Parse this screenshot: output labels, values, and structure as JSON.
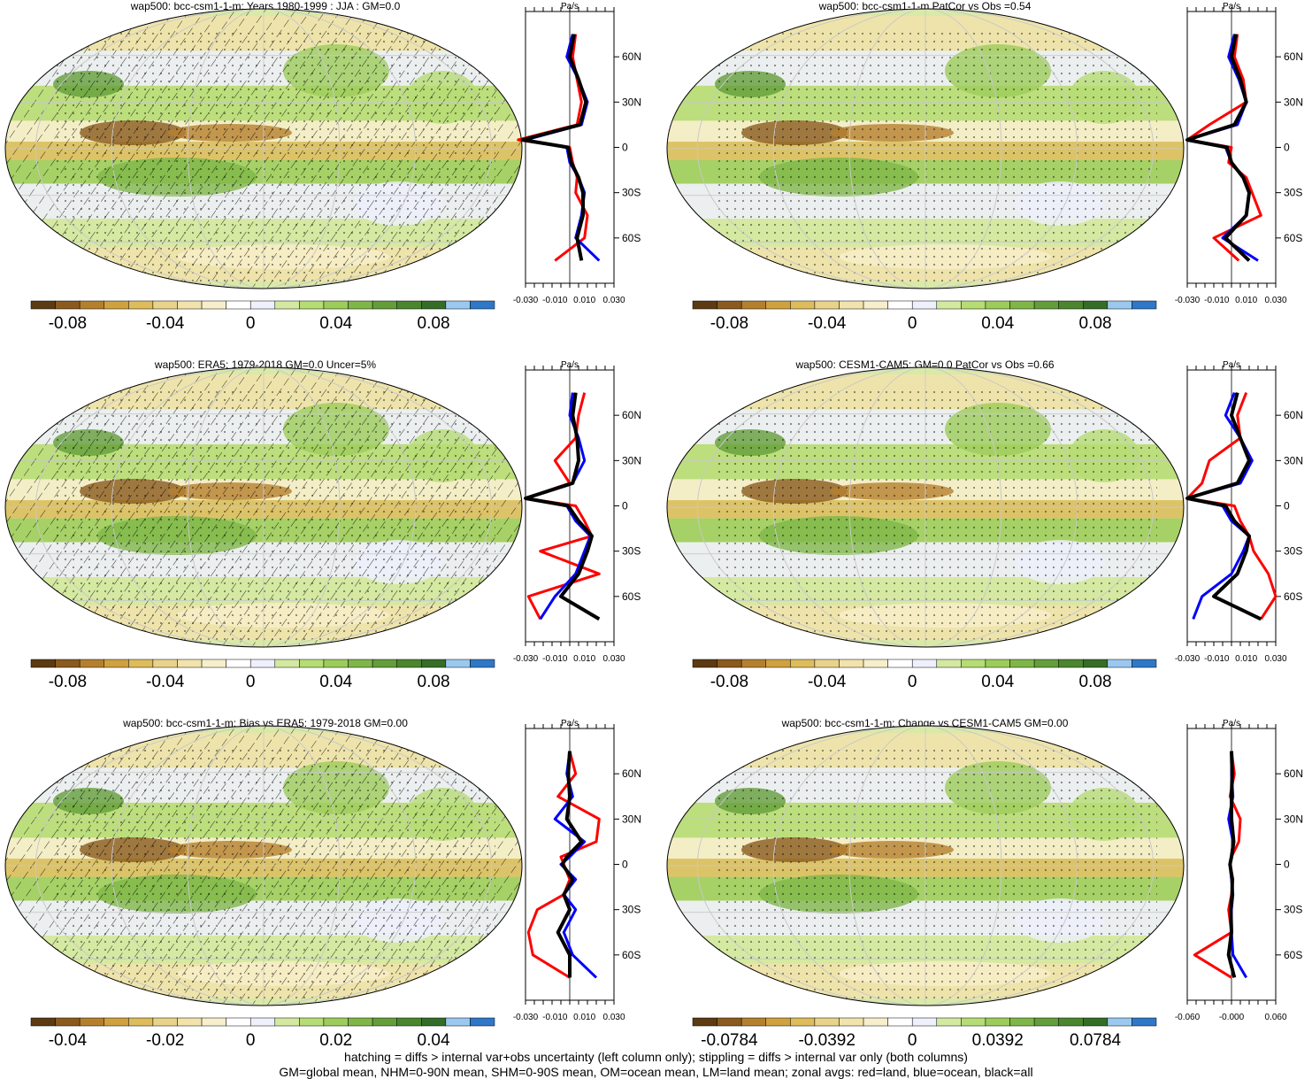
{
  "palette": [
    "#5c3a12",
    "#8a5a1e",
    "#b5802e",
    "#cfa13f",
    "#ddbc5c",
    "#e9d28a",
    "#f1e3ab",
    "#f7efcb",
    "#ffffff",
    "#eef0fb",
    "#d3e9a1",
    "#b6dc74",
    "#9ccc5a",
    "#7fb648",
    "#639e3a",
    "#4b862f",
    "#356d27",
    "#9ac8ef",
    "#2f78c8"
  ],
  "line_colors": {
    "land": "#ff0000",
    "ocean": "#0000ff",
    "all": "#000000"
  },
  "panels": [
    {
      "title": "wap500: bcc-csm1-1-m: Years 1980-1999 : JJA : GM=0.0",
      "hatch": true,
      "cbar_labels": [
        "-0.08",
        "-0.04",
        "0",
        "0.04",
        "0.08"
      ],
      "zonal_ticks": [
        "-0.030",
        "-0.010",
        "0.010",
        "0.030"
      ],
      "zonal_unit": "Pa/s"
    },
    {
      "title": "wap500: bcc-csm1-1-m PatCor vs Obs =0.54",
      "hatch": false,
      "cbar_labels": [
        "-0.08",
        "-0.04",
        "0",
        "0.04",
        "0.08"
      ],
      "zonal_ticks": [
        "-0.030",
        "-0.010",
        "0.010",
        "0.030"
      ],
      "zonal_unit": "Pa/s"
    },
    {
      "title": "wap500: ERA5: 1979-2018 GM=0.0 Uncer=5%",
      "hatch": true,
      "cbar_labels": [
        "-0.08",
        "-0.04",
        "0",
        "0.04",
        "0.08"
      ],
      "zonal_ticks": [
        "-0.030",
        "-0.010",
        "0.010",
        "0.030"
      ],
      "zonal_unit": "Pa/s"
    },
    {
      "title": "wap500: CESM1-CAM5: GM=0.0 PatCor vs Obs =0.66",
      "hatch": false,
      "cbar_labels": [
        "-0.08",
        "-0.04",
        "0",
        "0.04",
        "0.08"
      ],
      "zonal_ticks": [
        "-0.030",
        "-0.010",
        "0.010",
        "0.030"
      ],
      "zonal_unit": "Pa/s"
    },
    {
      "title": "wap500: bcc-csm1-1-m: Bias vs ERA5: 1979-2018 GM=0.00",
      "hatch": true,
      "cbar_labels": [
        "-0.04",
        "-0.02",
        "0",
        "0.02",
        "0.04"
      ],
      "zonal_ticks": [
        "-0.030",
        "-0.010",
        "0.010",
        "0.030"
      ],
      "zonal_unit": "Pa/s"
    },
    {
      "title": "wap500: bcc-csm1-1-m: Change vs CESM1-CAM5 GM=0.00",
      "hatch": false,
      "cbar_labels": [
        "-0.0784",
        "-0.0392",
        "0",
        "0.0392",
        "0.0784"
      ],
      "zonal_ticks": [
        "-0.060",
        "-0.000",
        "0.060"
      ],
      "zonal_unit": "Pa/s"
    }
  ],
  "lat_labels": [
    "60N",
    "30N",
    "0",
    "30S",
    "60S"
  ],
  "caption": [
    "hatching = diffs > internal var+obs uncertainty (left column only); stippling = diffs > internal var only (both columns)",
    "GM=global mean, NHM=0-90N mean, SHM=0-90S mean, OM=ocean mean, LM=land mean; zonal avgs: red=land, blue=ocean, black=all"
  ],
  "chart_data": [
    {
      "type": "line",
      "title": "wap500: bcc-csm1-1-m: Years 1980-1999 : JJA : GM=0.0",
      "xlabel": "Pa/s",
      "ylim": [
        -90,
        90
      ],
      "xlim": [
        -0.03,
        0.03
      ],
      "y": [
        75,
        60,
        45,
        30,
        15,
        5,
        0,
        -10,
        -20,
        -30,
        -45,
        -60,
        -75
      ],
      "series": [
        {
          "name": "land",
          "values": [
            0.004,
            0.002,
            0.005,
            0.008,
            0.005,
            -0.035,
            0.0,
            0.002,
            0.005,
            0.004,
            0.012,
            0.01,
            -0.01
          ]
        },
        {
          "name": "ocean",
          "values": [
            0.002,
            -0.002,
            0.006,
            0.012,
            0.008,
            -0.03,
            -0.002,
            0.0,
            0.006,
            0.01,
            0.008,
            0.004,
            0.02
          ]
        },
        {
          "name": "all",
          "values": [
            0.003,
            0.0,
            0.006,
            0.011,
            0.007,
            -0.032,
            -0.001,
            0.001,
            0.006,
            0.009,
            0.009,
            0.005,
            0.008
          ]
        }
      ]
    },
    {
      "type": "line",
      "title": "wap500: bcc-csm1-1-m PatCor vs Obs =0.54",
      "xlabel": "Pa/s",
      "ylim": [
        -90,
        90
      ],
      "xlim": [
        -0.03,
        0.03
      ],
      "y": [
        75,
        60,
        45,
        30,
        15,
        5,
        0,
        -10,
        -20,
        -30,
        -45,
        -60,
        -75
      ],
      "series": [
        {
          "name": "land",
          "values": [
            0.004,
            0.002,
            0.008,
            0.01,
            -0.015,
            -0.03,
            0.0,
            -0.002,
            0.01,
            0.014,
            0.02,
            -0.012,
            0.005
          ]
        },
        {
          "name": "ocean",
          "values": [
            0.002,
            -0.002,
            0.005,
            0.01,
            0.004,
            -0.03,
            -0.004,
            0.0,
            0.008,
            0.012,
            0.01,
            -0.006,
            0.018
          ]
        },
        {
          "name": "all",
          "values": [
            0.003,
            0.0,
            0.006,
            0.01,
            0.002,
            -0.03,
            -0.003,
            0.0,
            0.008,
            0.012,
            0.01,
            -0.004,
            0.012
          ]
        }
      ]
    },
    {
      "type": "line",
      "title": "wap500: ERA5: 1979-2018 GM=0.0 Uncer=5%",
      "xlabel": "Pa/s",
      "ylim": [
        -90,
        90
      ],
      "xlim": [
        -0.03,
        0.03
      ],
      "y": [
        75,
        60,
        45,
        30,
        15,
        5,
        0,
        -10,
        -20,
        -30,
        -45,
        -60,
        -75
      ],
      "series": [
        {
          "name": "land",
          "values": [
            0.01,
            0.006,
            0.004,
            -0.01,
            0.0,
            -0.03,
            0.004,
            0.01,
            0.015,
            -0.02,
            0.02,
            -0.028,
            -0.02
          ]
        },
        {
          "name": "ocean",
          "values": [
            0.002,
            0.0,
            0.006,
            0.01,
            0.002,
            -0.03,
            -0.002,
            0.004,
            0.014,
            0.01,
            0.004,
            -0.01,
            -0.02
          ]
        },
        {
          "name": "all",
          "values": [
            0.004,
            0.002,
            0.005,
            0.006,
            0.002,
            -0.03,
            -0.001,
            0.006,
            0.015,
            0.012,
            0.006,
            -0.006,
            0.02
          ]
        }
      ]
    },
    {
      "type": "line",
      "title": "wap500: CESM1-CAM5: GM=0.0 PatCor vs Obs =0.66",
      "xlabel": "Pa/s",
      "ylim": [
        -90,
        90
      ],
      "xlim": [
        -0.03,
        0.03
      ],
      "y": [
        75,
        60,
        45,
        30,
        15,
        5,
        0,
        -10,
        -20,
        -30,
        -45,
        -60,
        -75
      ],
      "series": [
        {
          "name": "land",
          "values": [
            0.01,
            0.004,
            0.006,
            -0.015,
            -0.02,
            -0.03,
            0.002,
            0.006,
            0.012,
            0.015,
            0.025,
            0.03,
            0.02
          ]
        },
        {
          "name": "ocean",
          "values": [
            0.002,
            -0.004,
            0.006,
            0.014,
            0.006,
            -0.03,
            -0.006,
            0.0,
            0.012,
            0.008,
            0.0,
            -0.02,
            -0.026
          ]
        },
        {
          "name": "all",
          "values": [
            0.004,
            0.0,
            0.006,
            0.012,
            0.004,
            -0.03,
            -0.004,
            0.002,
            0.012,
            0.01,
            0.004,
            -0.012,
            0.02
          ]
        }
      ]
    },
    {
      "type": "line",
      "title": "wap500: bcc-csm1-1-m: Bias vs ERA5: 1979-2018 GM=0.00",
      "xlabel": "Pa/s",
      "ylim": [
        -90,
        90
      ],
      "xlim": [
        -0.03,
        0.03
      ],
      "y": [
        75,
        60,
        45,
        30,
        15,
        5,
        0,
        -10,
        -20,
        -30,
        -45,
        -60,
        -75
      ],
      "series": [
        {
          "name": "land",
          "values": [
            0.0,
            0.004,
            -0.008,
            0.02,
            0.018,
            -0.006,
            -0.004,
            0.0,
            -0.004,
            -0.022,
            -0.028,
            -0.025,
            0.0
          ]
        },
        {
          "name": "ocean",
          "values": [
            0.0,
            -0.002,
            0.002,
            -0.01,
            0.01,
            0.0,
            -0.006,
            0.004,
            -0.004,
            0.004,
            -0.004,
            0.002,
            0.018
          ]
        },
        {
          "name": "all",
          "values": [
            0.0,
            -0.001,
            0.0,
            -0.002,
            0.008,
            -0.002,
            -0.005,
            0.002,
            -0.004,
            0.0,
            -0.008,
            0.0,
            0.0
          ]
        }
      ]
    },
    {
      "type": "line",
      "title": "wap500: bcc-csm1-1-m: Change vs CESM1-CAM5 GM=0.00",
      "xlabel": "Pa/s",
      "ylim": [
        -90,
        90
      ],
      "xlim": [
        -0.06,
        0.06
      ],
      "y": [
        75,
        60,
        45,
        30,
        15,
        5,
        0,
        -10,
        -20,
        -30,
        -45,
        -60,
        -75
      ],
      "series": [
        {
          "name": "land",
          "values": [
            0.0,
            0.004,
            -0.002,
            0.012,
            0.01,
            0.0,
            -0.002,
            0.002,
            0.0,
            -0.004,
            0.0,
            -0.05,
            0.0
          ]
        },
        {
          "name": "ocean",
          "values": [
            0.0,
            0.0,
            0.002,
            -0.004,
            0.002,
            0.0,
            -0.002,
            0.0,
            0.002,
            0.0,
            0.0,
            0.002,
            0.02
          ]
        },
        {
          "name": "all",
          "values": [
            0.0,
            0.001,
            0.0,
            0.0,
            0.003,
            0.0,
            -0.002,
            0.001,
            0.001,
            -0.001,
            0.0,
            -0.004,
            0.004
          ]
        }
      ]
    }
  ]
}
